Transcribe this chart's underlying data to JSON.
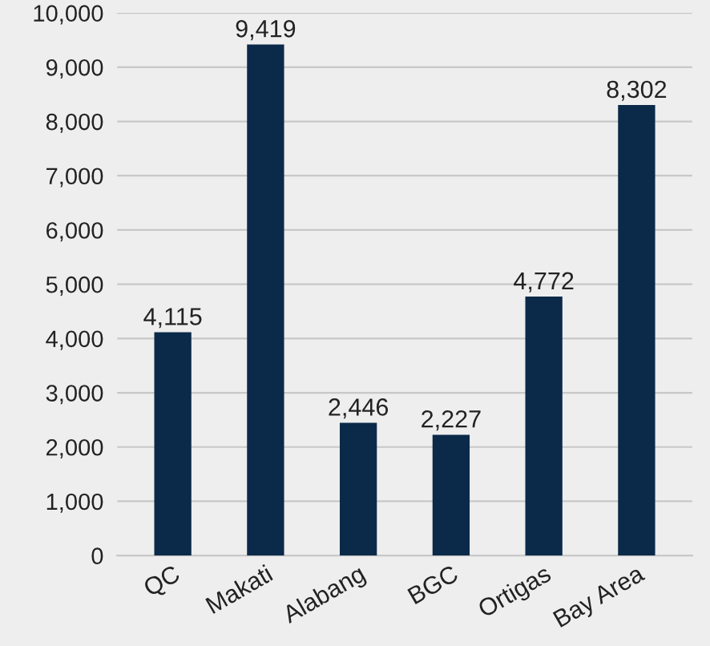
{
  "chart_data": {
    "type": "bar",
    "categories": [
      "QC",
      "Makati",
      "Alabang",
      "BGC",
      "Ortigas",
      "Bay Area"
    ],
    "values": [
      4115,
      9419,
      2446,
      2227,
      4772,
      8302
    ],
    "color": "#0b2a4a",
    "data_labels": true,
    "value_labels": [
      "4,115",
      "9,419",
      "2,446",
      "2,227",
      "4,772",
      "8,302"
    ],
    "ylim": [
      0,
      10000
    ],
    "yticks": [
      {
        "value": 0,
        "label": "0"
      },
      {
        "value": 1000,
        "label": "1,000"
      },
      {
        "value": 2000,
        "label": "2,000"
      },
      {
        "value": 3000,
        "label": "3,000"
      },
      {
        "value": 4000,
        "label": "4,000"
      },
      {
        "value": 5000,
        "label": "5,000"
      },
      {
        "value": 6000,
        "label": "6,000"
      },
      {
        "value": 7000,
        "label": "7,000"
      },
      {
        "value": 8000,
        "label": "8,000"
      },
      {
        "value": 9000,
        "label": "9,000"
      },
      {
        "value": 10000,
        "label": "10,000"
      }
    ],
    "grid": "y"
  }
}
